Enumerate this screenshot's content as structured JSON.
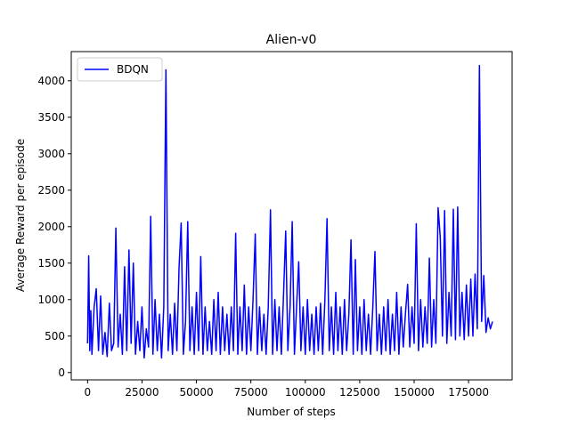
{
  "chart_data": {
    "type": "line",
    "title": "Alien-v0",
    "xlabel": "Number of steps",
    "ylabel": "Average Reward per episode",
    "xlim": [
      -7500,
      195000
    ],
    "ylim": [
      -100,
      4400
    ],
    "xticks": [
      0,
      25000,
      50000,
      75000,
      100000,
      125000,
      150000,
      175000
    ],
    "xtick_labels": [
      "0",
      "25000",
      "50000",
      "75000",
      "100000",
      "125000",
      "150000",
      "175000"
    ],
    "yticks": [
      0,
      500,
      1000,
      1500,
      2000,
      2500,
      3000,
      3500,
      4000
    ],
    "ytick_labels": [
      "0",
      "500",
      "1000",
      "1500",
      "2000",
      "2500",
      "3000",
      "3500",
      "4000"
    ],
    "legend_position": "top-left",
    "grid": false,
    "series": [
      {
        "name": "BDQN",
        "color": "#0000ff",
        "x": [
          0,
          500,
          1000,
          1500,
          2000,
          3000,
          4000,
          5000,
          6000,
          7000,
          8000,
          9000,
          10000,
          11000,
          12000,
          13000,
          14000,
          15000,
          16000,
          17000,
          18000,
          19000,
          20000,
          21000,
          22000,
          23000,
          24000,
          25000,
          26000,
          27000,
          28000,
          29000,
          30000,
          31000,
          32000,
          33000,
          34000,
          35000,
          36000,
          37000,
          38000,
          39000,
          40000,
          41000,
          42000,
          43000,
          44000,
          45000,
          46000,
          47000,
          48000,
          49000,
          50000,
          51000,
          52000,
          53000,
          54000,
          55000,
          56000,
          57000,
          58000,
          59000,
          60000,
          61000,
          62000,
          63000,
          64000,
          65000,
          66000,
          67000,
          68000,
          69000,
          70000,
          71000,
          72000,
          73000,
          74000,
          75000,
          76000,
          77000,
          78000,
          79000,
          80000,
          81000,
          82000,
          83000,
          84000,
          85000,
          86000,
          87000,
          88000,
          89000,
          90000,
          91000,
          92000,
          93000,
          94000,
          95000,
          96000,
          97000,
          98000,
          99000,
          100000,
          101000,
          102000,
          103000,
          104000,
          105000,
          106000,
          107000,
          108000,
          109000,
          110000,
          111000,
          112000,
          113000,
          114000,
          115000,
          116000,
          117000,
          118000,
          119000,
          120000,
          121000,
          122000,
          123000,
          124000,
          125000,
          126000,
          127000,
          128000,
          129000,
          130000,
          131000,
          132000,
          133000,
          134000,
          135000,
          136000,
          137000,
          138000,
          139000,
          140000,
          141000,
          142000,
          143000,
          144000,
          145000,
          146000,
          147000,
          148000,
          149000,
          150000,
          151000,
          152000,
          153000,
          154000,
          155000,
          156000,
          157000,
          158000,
          159000,
          160000,
          161000,
          162000,
          163000,
          164000,
          165000,
          166000,
          167000,
          168000,
          169000,
          170000,
          171000,
          172000,
          173000,
          174000,
          175000,
          176000,
          177000,
          178000,
          179000,
          180000,
          181000,
          182000,
          183000,
          184000,
          185000,
          186000
        ],
        "y": [
          400,
          1600,
          300,
          850,
          250,
          900,
          1150,
          300,
          1050,
          250,
          550,
          220,
          950,
          300,
          400,
          1980,
          350,
          800,
          250,
          1450,
          300,
          1680,
          400,
          1500,
          250,
          700,
          300,
          900,
          200,
          600,
          350,
          2140,
          250,
          1000,
          300,
          800,
          200,
          900,
          4150,
          300,
          800,
          250,
          950,
          300,
          1430,
          2050,
          250,
          700,
          2070,
          300,
          900,
          250,
          1100,
          300,
          1590,
          250,
          900,
          300,
          700,
          250,
          1000,
          300,
          1100,
          250,
          900,
          300,
          800,
          250,
          900,
          300,
          1910,
          250,
          900,
          300,
          1200,
          250,
          900,
          300,
          1000,
          1900,
          250,
          900,
          300,
          800,
          250,
          900,
          2230,
          250,
          1000,
          300,
          900,
          250,
          1050,
          1940,
          300,
          900,
          2070,
          250,
          900,
          1520,
          300,
          900,
          250,
          1000,
          300,
          800,
          250,
          900,
          300,
          950,
          250,
          1000,
          2110,
          300,
          900,
          250,
          1100,
          300,
          900,
          250,
          1000,
          300,
          800,
          1820,
          250,
          1550,
          300,
          900,
          250,
          1000,
          300,
          800,
          250,
          900,
          1660,
          300,
          800,
          250,
          900,
          300,
          1000,
          250,
          800,
          300,
          1100,
          250,
          900,
          350,
          800,
          1210,
          350,
          900,
          400,
          2040,
          300,
          1000,
          350,
          900,
          400,
          1570,
          350,
          1000,
          400,
          2260,
          1860,
          500,
          2220,
          400,
          1100,
          500,
          2240,
          450,
          2270,
          500,
          1100,
          450,
          1200,
          500,
          1280,
          500,
          1350,
          600,
          4210,
          700,
          1330,
          550,
          750,
          600,
          700
        ]
      }
    ]
  }
}
